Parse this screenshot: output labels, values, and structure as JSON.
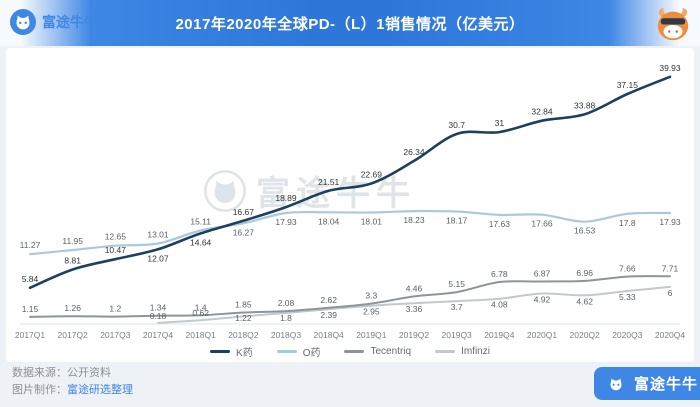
{
  "header": {
    "logo_text": "富途牛牛",
    "title": "2017年2020年全球PD-（L）1销售情况（亿美元）"
  },
  "watermark": {
    "text": "富途牛牛"
  },
  "chart_data": {
    "type": "line",
    "title": "2017年2020年全球PD-（L）1销售情况（亿美元）",
    "unit": "亿美元",
    "categories": [
      "2017Q1",
      "2017Q2",
      "2017Q3",
      "2017Q4",
      "2018Q1",
      "2018Q2",
      "2018Q3",
      "2018Q4",
      "2019Q1",
      "2019Q2",
      "2019Q3",
      "2019Q4",
      "2020Q1",
      "2020Q2",
      "2020Q3",
      "2020Q4"
    ],
    "series": [
      {
        "name": "K药",
        "color": "#1e4060",
        "values": [
          5.84,
          8.81,
          10.47,
          12.07,
          14.64,
          16.67,
          18.89,
          21.51,
          22.69,
          26.34,
          30.7,
          31,
          32.84,
          33.88,
          37.15,
          39.93
        ]
      },
      {
        "name": "O药",
        "color": "#a9cadc",
        "values": [
          11.27,
          11.95,
          12.65,
          13.01,
          15.11,
          16.27,
          17.93,
          18.04,
          18.01,
          18.23,
          18.17,
          17.63,
          17.66,
          16.53,
          17.8,
          17.93
        ]
      },
      {
        "name": "Tecentriq",
        "color": "#8e959a",
        "values": [
          1.15,
          1.26,
          1.2,
          1.34,
          1.4,
          1.85,
          2.08,
          2.62,
          3.3,
          4.46,
          5.15,
          6.78,
          6.87,
          6.96,
          7.66,
          7.71
        ]
      },
      {
        "name": "Imfinzi",
        "color": "#c1c8ce",
        "values": [
          null,
          null,
          null,
          0.18,
          0.62,
          1.22,
          1.8,
          2.39,
          2.95,
          3.36,
          3.7,
          4.08,
          4.92,
          4.62,
          5.33,
          6
        ]
      }
    ],
    "ylim": [
      0,
      42
    ],
    "grid": false,
    "legend_position": "bottom",
    "point_labels": true
  },
  "footer": {
    "source_label": "数据来源：",
    "source_value": "公开资料",
    "credit_label": "图片制作：",
    "credit_value": "富途研选整理",
    "brand_text": "富途牛牛"
  },
  "colors": {
    "header_blue": "#2e76d8",
    "brand_blue": "#3f87e4",
    "page_bg": "#eef1f5"
  }
}
